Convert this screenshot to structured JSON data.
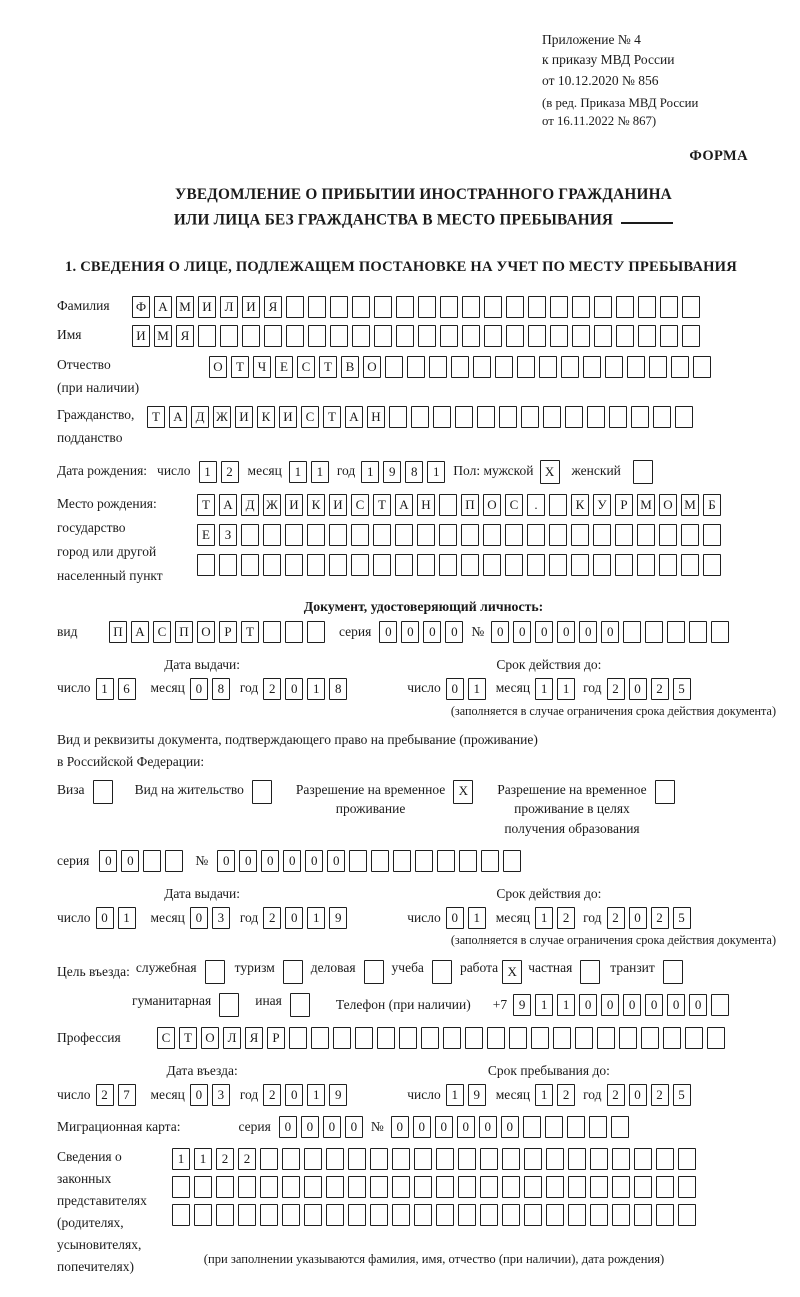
{
  "header": {
    "appendix_lines": [
      "Приложение № 4",
      "к приказу МВД России",
      "от 10.12.2020 № 856"
    ],
    "revision_lines": [
      "(в ред. Приказа МВД России",
      "от 16.11.2022 № 867)"
    ],
    "form_label": "ФОРМА"
  },
  "title": {
    "line1": "УВЕДОМЛЕНИЕ О ПРИБЫТИИ ИНОСТРАННОГО ГРАЖДАНИНА",
    "line2": "ИЛИ ЛИЦА БЕЗ ГРАЖДАНСТВА В МЕСТО ПРЕБЫВАНИЯ"
  },
  "section1_heading": "1. СВЕДЕНИЯ О ЛИЦЕ, ПОДЛЕЖАЩЕМ ПОСТАНОВКЕ НА УЧЕТ ПО МЕСТУ ПРЕБЫВАНИЯ",
  "labels": {
    "day": "число",
    "month": "месяц",
    "year": "год",
    "seriya": "серия",
    "number": "№"
  },
  "surname": {
    "label": "Фамилия",
    "cells": {
      "v": "ФАМИЛИЯ",
      "n": 26
    }
  },
  "given_name": {
    "label": "Имя",
    "cells": {
      "v": "ИМЯ",
      "n": 26
    }
  },
  "patronymic": {
    "label1": "Отчество",
    "label2": "(при наличии)",
    "cells": {
      "v": "ОТЧЕСТВО",
      "n": 23
    }
  },
  "citizenship": {
    "label1": "Гражданство,",
    "label2": "подданство",
    "cells": {
      "v": "ТАДЖИКИСТАН",
      "n": 25
    }
  },
  "birth": {
    "label": "Дата рождения:",
    "day": {
      "v": "12",
      "n": 2
    },
    "month": {
      "v": "11",
      "n": 2
    },
    "year": {
      "v": "1981",
      "n": 4
    },
    "sex_label": "Пол: мужской",
    "male_box": {
      "v": "X",
      "n": 1
    },
    "female_label": "женский",
    "female_box": {
      "v": "",
      "n": 1
    }
  },
  "birth_place": {
    "label_lines": [
      "Место рождения:",
      "государство",
      "город или другой",
      "населенный пункт"
    ],
    "row1": {
      "v": "ТАДЖИКИСТАН ПОС. КУРМОМБ",
      "n": 24
    },
    "row2": {
      "v": "ЕЗ",
      "n": 24
    },
    "row3": {
      "v": "",
      "n": 24
    }
  },
  "identity_doc": {
    "heading": "Документ, удостоверяющий личность:",
    "vid_label": "вид",
    "vid": {
      "v": "ПАСПОРТ",
      "n": 10
    },
    "seriya": {
      "v": "0000",
      "n": 4
    },
    "number": {
      "v": "000000",
      "n": 11
    },
    "issue_label": "Дата выдачи:",
    "issue": {
      "day": {
        "v": "16",
        "n": 2
      },
      "month": {
        "v": "08",
        "n": 2
      },
      "year": {
        "v": "2018",
        "n": 4
      }
    },
    "valid_label": "Срок действия до:",
    "valid": {
      "day": {
        "v": "01",
        "n": 2
      },
      "month": {
        "v": "11",
        "n": 2
      },
      "year": {
        "v": "2025",
        "n": 4
      }
    },
    "note": "(заполняется в случае ограничения срока действия документа)"
  },
  "residence_doc": {
    "line1": "Вид и реквизиты документа, подтверждающего право на пребывание (проживание)",
    "line2": "в Российской Федерации:",
    "visa_label": "Виза",
    "visa_box": {
      "v": "",
      "n": 1
    },
    "permit_label": "Вид на жительство",
    "permit_box": {
      "v": "",
      "n": 1
    },
    "temp_label1": "Разрешение на временное",
    "temp_label2": "проживание",
    "temp_box": {
      "v": "X",
      "n": 1
    },
    "edu_label1": "Разрешение на временное",
    "edu_label2": "проживание в целях",
    "edu_label3": "получения образования",
    "edu_box": {
      "v": "",
      "n": 1
    },
    "seriya": {
      "v": "00",
      "n": 4
    },
    "number": {
      "v": "000000",
      "n": 14
    },
    "issue_label": "Дата выдачи:",
    "issue": {
      "day": {
        "v": "01",
        "n": 2
      },
      "month": {
        "v": "03",
        "n": 2
      },
      "year": {
        "v": "2019",
        "n": 4
      }
    },
    "valid_label": "Срок действия до:",
    "valid": {
      "day": {
        "v": "01",
        "n": 2
      },
      "month": {
        "v": "12",
        "n": 2
      },
      "year": {
        "v": "2025",
        "n": 4
      }
    },
    "note": "(заполняется в случае ограничения срока действия документа)"
  },
  "visit": {
    "label": "Цель въезда:",
    "options": [
      {
        "label": "служебная",
        "box": {
          "v": "",
          "n": 1
        }
      },
      {
        "label": "туризм",
        "box": {
          "v": "",
          "n": 1
        }
      },
      {
        "label": "деловая",
        "box": {
          "v": "",
          "n": 1
        }
      },
      {
        "label": "учеба",
        "box": {
          "v": "",
          "n": 1
        }
      },
      {
        "label": "работа",
        "box": {
          "v": "X",
          "n": 1
        }
      },
      {
        "label": "частная",
        "box": {
          "v": "",
          "n": 1
        }
      },
      {
        "label": "транзит",
        "box": {
          "v": "",
          "n": 1
        }
      }
    ],
    "opt_humanitarian": {
      "label": "гуманитарная",
      "box": {
        "v": "",
        "n": 1
      }
    },
    "opt_other": {
      "label": "иная",
      "box": {
        "v": "",
        "n": 1
      }
    },
    "phone_label": "Телефон (при наличии)",
    "phone_prefix": "+7",
    "phone": {
      "v": "911000000",
      "n": 10
    }
  },
  "profession": {
    "label": "Профессия",
    "cells": {
      "v": "СТОЛЯР",
      "n": 26
    }
  },
  "entry": {
    "date_label": "Дата въезда:",
    "date": {
      "day": {
        "v": "27",
        "n": 2
      },
      "month": {
        "v": "03",
        "n": 2
      },
      "year": {
        "v": "2019",
        "n": 4
      }
    },
    "stay_label": "Срок пребывания до:",
    "stay": {
      "day": {
        "v": "19",
        "n": 2
      },
      "month": {
        "v": "12",
        "n": 2
      },
      "year": {
        "v": "2025",
        "n": 4
      }
    }
  },
  "migration_card": {
    "label": "Миграционная карта:",
    "seriya": {
      "v": "0000",
      "n": 4
    },
    "number": {
      "v": "000000",
      "n": 11
    }
  },
  "legal_reps": {
    "label_lines": [
      "Сведения о",
      "законных",
      "представителях",
      "(родителях,",
      "усыновителях,",
      "попечителях)"
    ],
    "row1": {
      "v": "1122",
      "n": 24
    },
    "row2": {
      "v": "",
      "n": 24
    },
    "row3": {
      "v": "",
      "n": 24
    },
    "note": "(при заполнении указываются фамилия, имя, отчество (при наличии), дата рождения)"
  }
}
